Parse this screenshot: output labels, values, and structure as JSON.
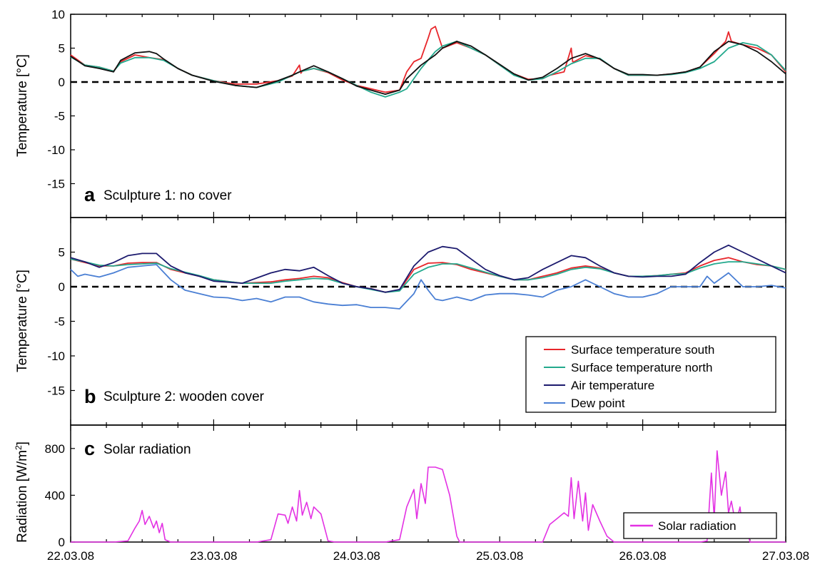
{
  "chart_data": [
    {
      "type": "line",
      "panel_letter": "a",
      "panel_title": "Sculpture 1: no cover",
      "ylabel": "Temperature [°C]",
      "ylim": [
        -20,
        10
      ],
      "yticks": [
        10,
        5,
        0,
        -5,
        -10,
        -15
      ],
      "xlim": [
        0,
        5
      ],
      "xtick_labels": [
        "22.03.08",
        "23.03.08",
        "24.03.08",
        "25.03.08",
        "26.03.08",
        "27.03.08"
      ],
      "reference_line": 0,
      "series": [
        {
          "name": "Surface temperature south",
          "color": "#e8262b",
          "x": [
            0,
            0.1,
            0.2,
            0.3,
            0.35,
            0.45,
            0.55,
            0.65,
            0.75,
            0.85,
            1.0,
            1.15,
            1.3,
            1.45,
            1.55,
            1.6,
            1.61,
            1.62,
            1.7,
            1.8,
            1.9,
            2.0,
            2.1,
            2.2,
            2.3,
            2.35,
            2.4,
            2.45,
            2.5,
            2.52,
            2.55,
            2.6,
            2.7,
            2.8,
            2.9,
            3.0,
            3.1,
            3.2,
            3.3,
            3.35,
            3.45,
            3.5,
            3.51,
            3.52,
            3.6,
            3.7,
            3.8,
            3.9,
            4.0,
            4.1,
            4.2,
            4.3,
            4.4,
            4.5,
            4.58,
            4.6,
            4.62,
            4.7,
            4.8,
            4.9,
            5.0
          ],
          "y": [
            4,
            2.5,
            2.2,
            1.6,
            3,
            4,
            3.6,
            3.3,
            2,
            1,
            0.2,
            -0.3,
            -0.3,
            0.2,
            0.9,
            2.5,
            1.3,
            1.6,
            2,
            1.4,
            0.3,
            -0.5,
            -1,
            -1.5,
            -1.2,
            1.5,
            3,
            3.5,
            6.5,
            7.8,
            8.2,
            5,
            5.8,
            5,
            4,
            2.5,
            1.2,
            0.4,
            0.5,
            1,
            1.5,
            5,
            3,
            3,
            3.9,
            3.4,
            2,
            1,
            1,
            1,
            1.2,
            1.5,
            2.2,
            4.2,
            6,
            7.4,
            6,
            5.5,
            5,
            4,
            1.5
          ]
        },
        {
          "name": "Surface temperature north",
          "color": "#23a98d",
          "x": [
            0,
            0.1,
            0.2,
            0.3,
            0.35,
            0.45,
            0.55,
            0.65,
            0.75,
            0.85,
            1.0,
            1.15,
            1.3,
            1.45,
            1.55,
            1.6,
            1.7,
            1.8,
            1.9,
            2.0,
            2.1,
            2.2,
            2.3,
            2.35,
            2.45,
            2.55,
            2.6,
            2.7,
            2.8,
            2.9,
            3.0,
            3.1,
            3.2,
            3.3,
            3.4,
            3.5,
            3.6,
            3.7,
            3.8,
            3.9,
            4.0,
            4.1,
            4.2,
            4.3,
            4.4,
            4.5,
            4.6,
            4.7,
            4.8,
            4.9,
            5.0
          ],
          "y": [
            3.7,
            2.5,
            2.2,
            1.6,
            2.8,
            3.6,
            3.6,
            3.2,
            2,
            1,
            0.2,
            -0.5,
            -0.8,
            0,
            1,
            1.5,
            2,
            1.5,
            0.5,
            -0.5,
            -1.5,
            -2.2,
            -1.5,
            -1,
            2,
            4.5,
            5.3,
            6,
            5,
            4,
            2.5,
            1,
            0.3,
            0.5,
            1.5,
            2.7,
            3.5,
            3.5,
            2,
            1,
            1,
            1,
            1.1,
            1.4,
            2,
            3,
            5,
            5.8,
            5.4,
            4,
            1.7
          ]
        },
        {
          "name": "Air temperature",
          "color": "#111111",
          "x": [
            0,
            0.1,
            0.2,
            0.3,
            0.35,
            0.45,
            0.55,
            0.6,
            0.65,
            0.75,
            0.85,
            1.0,
            1.15,
            1.3,
            1.45,
            1.55,
            1.6,
            1.7,
            1.8,
            1.9,
            2.0,
            2.1,
            2.2,
            2.3,
            2.35,
            2.45,
            2.55,
            2.6,
            2.7,
            2.8,
            2.9,
            3.0,
            3.1,
            3.2,
            3.3,
            3.4,
            3.5,
            3.6,
            3.7,
            3.8,
            3.9,
            4.0,
            4.1,
            4.2,
            4.3,
            4.4,
            4.5,
            4.6,
            4.7,
            4.8,
            4.9,
            5.0
          ],
          "y": [
            3.8,
            2.4,
            2,
            1.5,
            3.2,
            4.3,
            4.5,
            4.2,
            3.4,
            2,
            1,
            0.1,
            -0.5,
            -0.8,
            0.2,
            1,
            1.5,
            2.4,
            1.5,
            0.5,
            -0.6,
            -1.2,
            -1.8,
            -1.2,
            0.5,
            2.5,
            4,
            5,
            6,
            5.3,
            4,
            2.6,
            1.2,
            0.3,
            0.7,
            2,
            3.5,
            4.2,
            3.4,
            2,
            1.1,
            1.1,
            1,
            1.2,
            1.5,
            2.2,
            4.5,
            6,
            5.5,
            4.5,
            3,
            1.2
          ]
        }
      ]
    },
    {
      "type": "line",
      "panel_letter": "b",
      "panel_title": "Sculpture 2: wooden cover",
      "ylabel": "Temperature [°C]",
      "ylim": [
        -20,
        10
      ],
      "yticks": [
        5,
        0,
        -5,
        -10,
        -15
      ],
      "xlim": [
        0,
        5
      ],
      "xtick_labels": [
        "22.03.08",
        "23.03.08",
        "24.03.08",
        "25.03.08",
        "26.03.08",
        "27.03.08"
      ],
      "reference_line": 0,
      "legend": {
        "position": "bottom-right",
        "entries": [
          "Surface temperature south",
          "Surface temperature north",
          "Air temperature",
          "Dew point"
        ]
      },
      "series": [
        {
          "name": "Surface temperature south",
          "color": "#e8262b",
          "x": [
            0,
            0.1,
            0.2,
            0.3,
            0.4,
            0.5,
            0.6,
            0.7,
            0.8,
            0.9,
            1.0,
            1.2,
            1.4,
            1.5,
            1.6,
            1.7,
            1.8,
            1.9,
            2.0,
            2.1,
            2.2,
            2.3,
            2.4,
            2.5,
            2.6,
            2.7,
            2.8,
            2.9,
            3.0,
            3.1,
            3.2,
            3.3,
            3.4,
            3.5,
            3.6,
            3.7,
            3.8,
            3.9,
            4.0,
            4.1,
            4.2,
            4.3,
            4.4,
            4.5,
            4.6,
            4.7,
            4.8,
            4.9,
            5.0
          ],
          "y": [
            4,
            3.5,
            3,
            3,
            3.4,
            3.5,
            3.5,
            2.5,
            2,
            1.5,
            1,
            0.5,
            0.7,
            1,
            1.2,
            1.5,
            1.3,
            0.6,
            0,
            -0.3,
            -0.8,
            -0.5,
            2.5,
            3.4,
            3.5,
            3.2,
            2.5,
            2,
            1.5,
            1,
            1,
            1.5,
            2,
            2.7,
            3,
            2.7,
            2,
            1.5,
            1.5,
            1.6,
            1.8,
            2,
            3,
            3.8,
            4.2,
            3.6,
            3.2,
            3,
            2.5
          ]
        },
        {
          "name": "Surface temperature north",
          "color": "#23a98d",
          "x": [
            0,
            0.1,
            0.2,
            0.3,
            0.4,
            0.5,
            0.6,
            0.7,
            0.8,
            0.9,
            1.0,
            1.2,
            1.4,
            1.5,
            1.6,
            1.7,
            1.8,
            1.9,
            2.0,
            2.1,
            2.2,
            2.3,
            2.4,
            2.5,
            2.6,
            2.7,
            2.8,
            2.9,
            3.0,
            3.1,
            3.2,
            3.3,
            3.4,
            3.5,
            3.6,
            3.7,
            3.8,
            3.9,
            4.0,
            4.1,
            4.2,
            4.3,
            4.4,
            4.5,
            4.6,
            4.7,
            4.8,
            4.9,
            5.0
          ],
          "y": [
            4,
            3.6,
            3.1,
            3,
            3.2,
            3.3,
            3.4,
            2.6,
            2.1,
            1.6,
            1,
            0.5,
            0.5,
            0.8,
            1,
            1.2,
            1.1,
            0.5,
            0,
            -0.4,
            -0.8,
            -0.6,
            1.8,
            2.8,
            3.3,
            3.3,
            2.7,
            2.1,
            1.5,
            1,
            1,
            1.3,
            1.8,
            2.5,
            2.8,
            2.6,
            2,
            1.5,
            1.5,
            1.6,
            1.8,
            1.9,
            2.7,
            3.3,
            3.6,
            3.6,
            3.3,
            3,
            2.5
          ]
        },
        {
          "name": "Air temperature",
          "color": "#1c1a6e",
          "x": [
            0,
            0.1,
            0.2,
            0.3,
            0.4,
            0.5,
            0.6,
            0.7,
            0.8,
            0.9,
            1.0,
            1.2,
            1.4,
            1.5,
            1.6,
            1.7,
            1.8,
            1.9,
            2.0,
            2.1,
            2.2,
            2.3,
            2.4,
            2.5,
            2.6,
            2.7,
            2.8,
            2.9,
            3.0,
            3.1,
            3.2,
            3.3,
            3.4,
            3.5,
            3.6,
            3.7,
            3.8,
            3.9,
            4.0,
            4.1,
            4.2,
            4.3,
            4.4,
            4.5,
            4.6,
            4.7,
            4.8,
            4.9,
            5.0
          ],
          "y": [
            4.2,
            3.6,
            2.8,
            3.5,
            4.5,
            4.8,
            4.8,
            3,
            2,
            1.5,
            0.8,
            0.5,
            2,
            2.5,
            2.3,
            2.8,
            1.6,
            0.5,
            0,
            -0.3,
            -0.8,
            -0.4,
            3,
            5,
            5.8,
            5.5,
            4,
            2.5,
            1.6,
            1,
            1.3,
            2.5,
            3.5,
            4.5,
            4.2,
            3,
            2,
            1.5,
            1.4,
            1.5,
            1.5,
            1.8,
            3.5,
            5,
            6,
            5,
            4,
            3,
            2
          ]
        },
        {
          "name": "Dew point",
          "color": "#4a7fd4",
          "x": [
            0,
            0.05,
            0.1,
            0.2,
            0.3,
            0.4,
            0.5,
            0.6,
            0.7,
            0.8,
            0.9,
            1.0,
            1.1,
            1.2,
            1.3,
            1.4,
            1.5,
            1.6,
            1.7,
            1.8,
            1.9,
            2.0,
            2.1,
            2.2,
            2.3,
            2.4,
            2.45,
            2.5,
            2.55,
            2.6,
            2.7,
            2.8,
            2.9,
            3.0,
            3.1,
            3.2,
            3.3,
            3.4,
            3.5,
            3.6,
            3.7,
            3.8,
            3.9,
            4.0,
            4.1,
            4.2,
            4.3,
            4.4,
            4.45,
            4.5,
            4.6,
            4.7,
            4.8,
            4.9,
            5.0
          ],
          "y": [
            2.5,
            1.5,
            1.8,
            1.4,
            2,
            2.8,
            3,
            3.2,
            1,
            -0.5,
            -1,
            -1.5,
            -1.6,
            -2,
            -1.7,
            -2.2,
            -1.5,
            -1.5,
            -2.2,
            -2.5,
            -2.7,
            -2.6,
            -3,
            -3,
            -3.2,
            -1,
            1,
            -0.5,
            -1.8,
            -2,
            -1.5,
            -2,
            -1.2,
            -1,
            -1,
            -1.2,
            -1.5,
            -0.5,
            0,
            1,
            0,
            -1,
            -1.5,
            -1.5,
            -1,
            0,
            0,
            0,
            1.5,
            0.5,
            2,
            0,
            0,
            0.2,
            -0.2
          ]
        }
      ]
    },
    {
      "type": "line",
      "panel_letter": "c",
      "panel_title": "Solar radiation",
      "ylabel_main": "Radiation [W/m",
      "ylabel_sup": "2",
      "ylabel_end": "]",
      "ylim": [
        0,
        1000
      ],
      "yticks": [
        800,
        400,
        0
      ],
      "xlim": [
        0,
        5
      ],
      "xtick_labels": [
        "22.03.08",
        "23.03.08",
        "24.03.08",
        "25.03.08",
        "26.03.08",
        "27.03.08"
      ],
      "legend": {
        "position": "bottom-right",
        "entries": [
          "Solar radiation"
        ]
      },
      "series": [
        {
          "name": "Solar radiation",
          "color": "#e331e3",
          "x": [
            0,
            0.3,
            0.4,
            0.45,
            0.48,
            0.5,
            0.52,
            0.55,
            0.58,
            0.6,
            0.62,
            0.64,
            0.66,
            0.7,
            0.75,
            1.0,
            1.3,
            1.4,
            1.45,
            1.5,
            1.52,
            1.55,
            1.58,
            1.6,
            1.62,
            1.65,
            1.68,
            1.7,
            1.75,
            1.8,
            1.85,
            2.0,
            2.2,
            2.3,
            2.35,
            2.4,
            2.42,
            2.45,
            2.48,
            2.5,
            2.55,
            2.6,
            2.65,
            2.7,
            2.72,
            2.75,
            2.8,
            3.0,
            3.3,
            3.35,
            3.4,
            3.45,
            3.48,
            3.5,
            3.52,
            3.55,
            3.58,
            3.6,
            3.62,
            3.65,
            3.7,
            3.75,
            3.8,
            4.0,
            4.3,
            4.4,
            4.45,
            4.48,
            4.5,
            4.52,
            4.55,
            4.58,
            4.6,
            4.62,
            4.65,
            4.68,
            4.7,
            4.72,
            4.75,
            5.0
          ],
          "y": [
            0,
            0,
            10,
            120,
            180,
            270,
            150,
            220,
            120,
            180,
            80,
            160,
            20,
            0,
            0,
            0,
            0,
            20,
            240,
            230,
            160,
            300,
            180,
            440,
            230,
            340,
            200,
            300,
            240,
            10,
            0,
            0,
            0,
            20,
            300,
            450,
            200,
            500,
            330,
            640,
            640,
            620,
            400,
            50,
            0,
            0,
            0,
            0,
            0,
            150,
            200,
            250,
            220,
            550,
            200,
            520,
            180,
            420,
            100,
            320,
            180,
            50,
            0,
            0,
            0,
            0,
            10,
            590,
            200,
            780,
            400,
            600,
            250,
            350,
            150,
            300,
            100,
            150,
            0,
            0
          ]
        }
      ]
    }
  ]
}
